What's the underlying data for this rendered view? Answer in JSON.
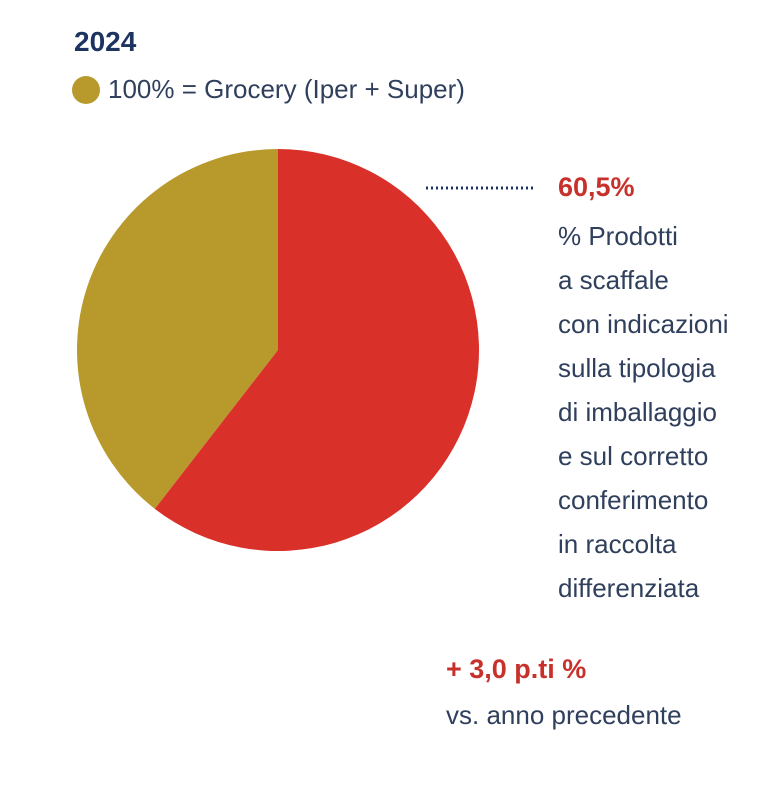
{
  "header": {
    "year": "2024",
    "legend_label": "100% = Grocery (Iper + Super)"
  },
  "colors": {
    "highlight": "#d93029",
    "base": "#b89a2c",
    "text_dark": "#1d3461"
  },
  "chart_data": {
    "type": "pie",
    "slices": [
      {
        "label": "% Prodotti a scaffale con indicazioni sulla tipologia di imballaggio e sul corretto conferimento in raccolta differenziata",
        "value": 60.5,
        "color": "#d93029"
      },
      {
        "value": 39.5,
        "color": "#b89a2c"
      }
    ],
    "annotation": {
      "value_label": "60,5%",
      "description_lines": [
        "% Prodotti",
        "a scaffale",
        "con indicazioni",
        "sulla tipologia",
        "di imballaggio",
        "e sul corretto",
        "conferimento",
        "in raccolta",
        "differenziata"
      ]
    },
    "delta": {
      "value_label": "+ 3,0 p.ti %",
      "label": "vs. anno precedente"
    }
  }
}
